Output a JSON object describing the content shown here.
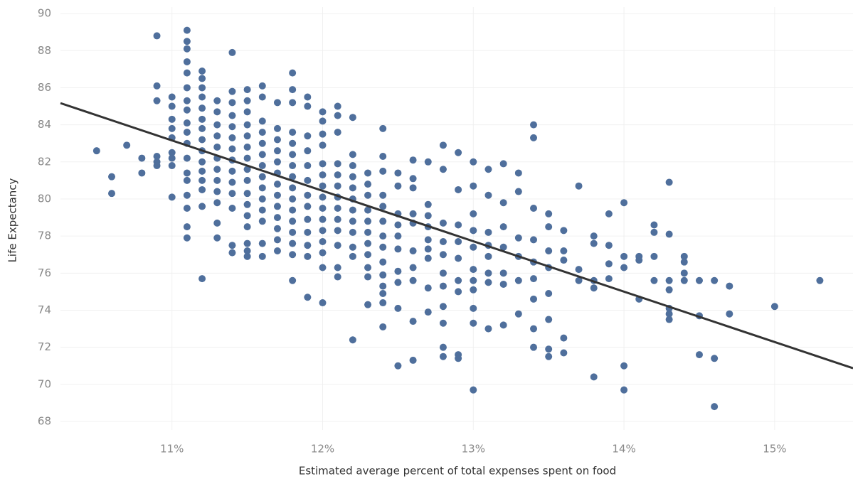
{
  "chart_data": {
    "type": "scatter",
    "x_label": "Estimated average percent of total expenses spent on food",
    "y_label": "Life Expectancy",
    "color": "#4f6f9c",
    "trend_color": "#333333",
    "grid": true,
    "xlim": [
      10.26,
      15.52
    ],
    "ylim": [
      67.54,
      90.35
    ],
    "xticks": [
      {
        "value": 11,
        "label": "11%"
      },
      {
        "value": 12,
        "label": "12%"
      },
      {
        "value": 13,
        "label": "13%"
      },
      {
        "value": 14,
        "label": "14%"
      },
      {
        "value": 15,
        "label": "15%"
      }
    ],
    "yticks": [
      68,
      70,
      72,
      74,
      76,
      78,
      80,
      82,
      84,
      86,
      88,
      90
    ],
    "trend_line": {
      "x": [
        10.26,
        15.52
      ],
      "y": [
        85.17,
        70.87
      ]
    },
    "points": [
      [
        10.5,
        82.6
      ],
      [
        10.6,
        81.2
      ],
      [
        10.6,
        80.3
      ],
      [
        10.7,
        82.9
      ],
      [
        10.8,
        82.2
      ],
      [
        10.8,
        81.4
      ],
      [
        10.9,
        88.8
      ],
      [
        10.9,
        86.1
      ],
      [
        10.9,
        85.3
      ],
      [
        10.9,
        82.3
      ],
      [
        10.9,
        82.0
      ],
      [
        10.9,
        81.8
      ],
      [
        11.0,
        85.5
      ],
      [
        11.0,
        85.0
      ],
      [
        11.0,
        84.3
      ],
      [
        11.0,
        83.8
      ],
      [
        11.0,
        83.3
      ],
      [
        11.0,
        82.5
      ],
      [
        11.0,
        82.2
      ],
      [
        11.0,
        81.8
      ],
      [
        11.0,
        80.1
      ],
      [
        11.1,
        89.1
      ],
      [
        11.1,
        88.5
      ],
      [
        11.1,
        88.1
      ],
      [
        11.1,
        87.4
      ],
      [
        11.1,
        86.8
      ],
      [
        11.1,
        86.0
      ],
      [
        11.1,
        85.3
      ],
      [
        11.1,
        84.8
      ],
      [
        11.1,
        84.1
      ],
      [
        11.1,
        83.6
      ],
      [
        11.1,
        83.0
      ],
      [
        11.1,
        82.2
      ],
      [
        11.1,
        81.4
      ],
      [
        11.1,
        81.0
      ],
      [
        11.1,
        80.2
      ],
      [
        11.1,
        79.5
      ],
      [
        11.1,
        78.5
      ],
      [
        11.1,
        77.9
      ],
      [
        11.2,
        86.9
      ],
      [
        11.2,
        86.5
      ],
      [
        11.2,
        86.0
      ],
      [
        11.2,
        85.5
      ],
      [
        11.2,
        84.9
      ],
      [
        11.2,
        84.3
      ],
      [
        11.2,
        83.8
      ],
      [
        11.2,
        83.2
      ],
      [
        11.2,
        82.6
      ],
      [
        11.2,
        82.0
      ],
      [
        11.2,
        81.5
      ],
      [
        11.2,
        81.0
      ],
      [
        11.2,
        80.5
      ],
      [
        11.2,
        79.6
      ],
      [
        11.2,
        75.7
      ],
      [
        11.3,
        85.3
      ],
      [
        11.3,
        84.7
      ],
      [
        11.3,
        84.0
      ],
      [
        11.3,
        83.4
      ],
      [
        11.3,
        82.8
      ],
      [
        11.3,
        82.2
      ],
      [
        11.3,
        81.6
      ],
      [
        11.3,
        81.0
      ],
      [
        11.3,
        80.4
      ],
      [
        11.3,
        79.8
      ],
      [
        11.3,
        78.7
      ],
      [
        11.3,
        77.9
      ],
      [
        11.4,
        87.9
      ],
      [
        11.4,
        85.8
      ],
      [
        11.4,
        85.2
      ],
      [
        11.4,
        84.5
      ],
      [
        11.4,
        83.9
      ],
      [
        11.4,
        83.3
      ],
      [
        11.4,
        82.7
      ],
      [
        11.4,
        82.1
      ],
      [
        11.4,
        81.5
      ],
      [
        11.4,
        80.9
      ],
      [
        11.4,
        80.3
      ],
      [
        11.4,
        79.5
      ],
      [
        11.4,
        77.5
      ],
      [
        11.4,
        77.1
      ],
      [
        11.5,
        85.9
      ],
      [
        11.5,
        85.3
      ],
      [
        11.5,
        84.7
      ],
      [
        11.5,
        84.0
      ],
      [
        11.5,
        83.4
      ],
      [
        11.5,
        82.8
      ],
      [
        11.5,
        82.2
      ],
      [
        11.5,
        81.6
      ],
      [
        11.5,
        81.0
      ],
      [
        11.5,
        80.3
      ],
      [
        11.5,
        79.7
      ],
      [
        11.5,
        79.1
      ],
      [
        11.5,
        78.5
      ],
      [
        11.5,
        77.6
      ],
      [
        11.5,
        77.2
      ],
      [
        11.5,
        76.9
      ],
      [
        11.6,
        86.1
      ],
      [
        11.6,
        85.5
      ],
      [
        11.6,
        84.2
      ],
      [
        11.6,
        83.6
      ],
      [
        11.6,
        83.0
      ],
      [
        11.6,
        82.4
      ],
      [
        11.6,
        81.8
      ],
      [
        11.6,
        81.2
      ],
      [
        11.6,
        80.6
      ],
      [
        11.6,
        80.0
      ],
      [
        11.6,
        79.4
      ],
      [
        11.6,
        78.8
      ],
      [
        11.6,
        77.6
      ],
      [
        11.6,
        76.9
      ],
      [
        11.7,
        85.2
      ],
      [
        11.7,
        83.8
      ],
      [
        11.7,
        83.2
      ],
      [
        11.7,
        82.6
      ],
      [
        11.7,
        82.0
      ],
      [
        11.7,
        81.4
      ],
      [
        11.7,
        80.8
      ],
      [
        11.7,
        80.2
      ],
      [
        11.7,
        79.6
      ],
      [
        11.7,
        79.0
      ],
      [
        11.7,
        78.4
      ],
      [
        11.7,
        77.8
      ],
      [
        11.7,
        77.2
      ],
      [
        11.8,
        86.8
      ],
      [
        11.8,
        85.9
      ],
      [
        11.8,
        85.2
      ],
      [
        11.8,
        83.6
      ],
      [
        11.8,
        83.0
      ],
      [
        11.8,
        82.4
      ],
      [
        11.8,
        81.8
      ],
      [
        11.8,
        81.2
      ],
      [
        11.8,
        80.6
      ],
      [
        11.8,
        80.0
      ],
      [
        11.8,
        79.4
      ],
      [
        11.8,
        78.8
      ],
      [
        11.8,
        78.2
      ],
      [
        11.8,
        77.6
      ],
      [
        11.8,
        77.0
      ],
      [
        11.8,
        75.6
      ],
      [
        11.9,
        85.5
      ],
      [
        11.9,
        85.0
      ],
      [
        11.9,
        83.4
      ],
      [
        11.9,
        82.6
      ],
      [
        11.9,
        81.8
      ],
      [
        11.9,
        81.0
      ],
      [
        11.9,
        80.2
      ],
      [
        11.9,
        79.6
      ],
      [
        11.9,
        78.9
      ],
      [
        11.9,
        78.2
      ],
      [
        11.9,
        77.5
      ],
      [
        11.9,
        76.9
      ],
      [
        11.9,
        74.7
      ],
      [
        12.0,
        84.7
      ],
      [
        12.0,
        84.2
      ],
      [
        12.0,
        83.5
      ],
      [
        12.0,
        82.9
      ],
      [
        12.0,
        81.9
      ],
      [
        12.0,
        81.3
      ],
      [
        12.0,
        80.7
      ],
      [
        12.0,
        80.1
      ],
      [
        12.0,
        79.5
      ],
      [
        12.0,
        78.9
      ],
      [
        12.0,
        78.3
      ],
      [
        12.0,
        77.7
      ],
      [
        12.0,
        77.1
      ],
      [
        12.0,
        76.3
      ],
      [
        12.0,
        74.4
      ],
      [
        12.1,
        85.0
      ],
      [
        12.1,
        84.5
      ],
      [
        12.1,
        83.6
      ],
      [
        12.1,
        81.9
      ],
      [
        12.1,
        81.3
      ],
      [
        12.1,
        80.7
      ],
      [
        12.1,
        80.1
      ],
      [
        12.1,
        79.5
      ],
      [
        12.1,
        78.9
      ],
      [
        12.1,
        78.3
      ],
      [
        12.1,
        77.5
      ],
      [
        12.1,
        76.3
      ],
      [
        12.1,
        75.8
      ],
      [
        12.2,
        84.4
      ],
      [
        12.2,
        82.4
      ],
      [
        12.2,
        81.8
      ],
      [
        12.2,
        81.2
      ],
      [
        12.2,
        80.6
      ],
      [
        12.2,
        80.0
      ],
      [
        12.2,
        79.4
      ],
      [
        12.2,
        78.8
      ],
      [
        12.2,
        78.2
      ],
      [
        12.2,
        77.4
      ],
      [
        12.2,
        76.9
      ],
      [
        12.2,
        72.4
      ],
      [
        12.3,
        81.4
      ],
      [
        12.3,
        80.8
      ],
      [
        12.3,
        80.2
      ],
      [
        12.3,
        79.4
      ],
      [
        12.3,
        78.8
      ],
      [
        12.3,
        78.2
      ],
      [
        12.3,
        77.6
      ],
      [
        12.3,
        77.0
      ],
      [
        12.3,
        76.3
      ],
      [
        12.3,
        75.8
      ],
      [
        12.3,
        74.3
      ],
      [
        12.4,
        83.8
      ],
      [
        12.4,
        82.3
      ],
      [
        12.4,
        81.5
      ],
      [
        12.4,
        80.2
      ],
      [
        12.4,
        79.6
      ],
      [
        12.4,
        78.8
      ],
      [
        12.4,
        78.0
      ],
      [
        12.4,
        77.4
      ],
      [
        12.4,
        76.6
      ],
      [
        12.4,
        75.9
      ],
      [
        12.4,
        75.3
      ],
      [
        12.4,
        74.9
      ],
      [
        12.4,
        74.4
      ],
      [
        12.4,
        73.1
      ],
      [
        12.5,
        81.4
      ],
      [
        12.5,
        80.7
      ],
      [
        12.5,
        79.2
      ],
      [
        12.5,
        78.6
      ],
      [
        12.5,
        78.0
      ],
      [
        12.5,
        77.3
      ],
      [
        12.5,
        76.1
      ],
      [
        12.5,
        75.5
      ],
      [
        12.5,
        74.1
      ],
      [
        12.5,
        71.0
      ],
      [
        12.6,
        82.1
      ],
      [
        12.6,
        81.1
      ],
      [
        12.6,
        80.6
      ],
      [
        12.6,
        79.2
      ],
      [
        12.6,
        78.7
      ],
      [
        12.6,
        77.2
      ],
      [
        12.6,
        76.3
      ],
      [
        12.6,
        75.6
      ],
      [
        12.6,
        73.4
      ],
      [
        12.6,
        71.3
      ],
      [
        12.7,
        82.0
      ],
      [
        12.7,
        79.7
      ],
      [
        12.7,
        79.1
      ],
      [
        12.7,
        78.5
      ],
      [
        12.7,
        77.8
      ],
      [
        12.7,
        77.3
      ],
      [
        12.7,
        76.8
      ],
      [
        12.7,
        75.2
      ],
      [
        12.7,
        73.9
      ],
      [
        12.8,
        82.9
      ],
      [
        12.8,
        81.6
      ],
      [
        12.8,
        78.7
      ],
      [
        12.8,
        77.7
      ],
      [
        12.8,
        77.0
      ],
      [
        12.8,
        76.0
      ],
      [
        12.8,
        75.3
      ],
      [
        12.8,
        74.2
      ],
      [
        12.8,
        73.3
      ],
      [
        12.8,
        72.0
      ],
      [
        12.8,
        71.5
      ],
      [
        12.9,
        82.5
      ],
      [
        12.9,
        80.5
      ],
      [
        12.9,
        78.6
      ],
      [
        12.9,
        77.7
      ],
      [
        12.9,
        76.8
      ],
      [
        12.9,
        75.6
      ],
      [
        12.9,
        75.0
      ],
      [
        12.9,
        71.6
      ],
      [
        12.9,
        71.4
      ],
      [
        13.0,
        82.0
      ],
      [
        13.0,
        80.7
      ],
      [
        13.0,
        79.2
      ],
      [
        13.0,
        78.3
      ],
      [
        13.0,
        77.4
      ],
      [
        13.0,
        76.2
      ],
      [
        13.0,
        75.6
      ],
      [
        13.0,
        75.1
      ],
      [
        13.0,
        74.1
      ],
      [
        13.0,
        73.3
      ],
      [
        13.0,
        69.7
      ],
      [
        13.1,
        81.6
      ],
      [
        13.1,
        80.2
      ],
      [
        13.1,
        78.2
      ],
      [
        13.1,
        77.5
      ],
      [
        13.1,
        76.9
      ],
      [
        13.1,
        76.0
      ],
      [
        13.1,
        75.5
      ],
      [
        13.1,
        73.0
      ],
      [
        13.2,
        81.9
      ],
      [
        13.2,
        79.8
      ],
      [
        13.2,
        78.5
      ],
      [
        13.2,
        77.4
      ],
      [
        13.2,
        76.0
      ],
      [
        13.2,
        75.4
      ],
      [
        13.2,
        73.2
      ],
      [
        13.3,
        81.4
      ],
      [
        13.3,
        80.4
      ],
      [
        13.3,
        77.9
      ],
      [
        13.3,
        76.9
      ],
      [
        13.3,
        75.6
      ],
      [
        13.3,
        73.8
      ],
      [
        13.4,
        84.0
      ],
      [
        13.4,
        83.3
      ],
      [
        13.4,
        79.5
      ],
      [
        13.4,
        77.8
      ],
      [
        13.4,
        76.6
      ],
      [
        13.4,
        75.7
      ],
      [
        13.4,
        74.6
      ],
      [
        13.4,
        73.0
      ],
      [
        13.4,
        72.0
      ],
      [
        13.5,
        79.2
      ],
      [
        13.5,
        78.5
      ],
      [
        13.5,
        77.2
      ],
      [
        13.5,
        76.3
      ],
      [
        13.5,
        74.9
      ],
      [
        13.5,
        73.5
      ],
      [
        13.5,
        71.9
      ],
      [
        13.5,
        71.5
      ],
      [
        13.6,
        78.3
      ],
      [
        13.6,
        77.2
      ],
      [
        13.6,
        76.7
      ],
      [
        13.6,
        72.5
      ],
      [
        13.6,
        71.7
      ],
      [
        13.7,
        80.7
      ],
      [
        13.7,
        76.2
      ],
      [
        13.7,
        75.6
      ],
      [
        13.8,
        78.0
      ],
      [
        13.8,
        77.6
      ],
      [
        13.8,
        75.6
      ],
      [
        13.8,
        75.2
      ],
      [
        13.8,
        70.4
      ],
      [
        13.9,
        79.2
      ],
      [
        13.9,
        77.5
      ],
      [
        13.9,
        76.5
      ],
      [
        13.9,
        75.7
      ],
      [
        14.0,
        79.8
      ],
      [
        14.0,
        76.9
      ],
      [
        14.0,
        76.3
      ],
      [
        14.0,
        71.0
      ],
      [
        14.0,
        69.7
      ],
      [
        14.1,
        76.9
      ],
      [
        14.1,
        76.7
      ],
      [
        14.1,
        74.6
      ],
      [
        14.2,
        78.6
      ],
      [
        14.2,
        78.2
      ],
      [
        14.2,
        76.9
      ],
      [
        14.2,
        75.6
      ],
      [
        14.3,
        80.9
      ],
      [
        14.3,
        78.1
      ],
      [
        14.3,
        75.6
      ],
      [
        14.3,
        75.1
      ],
      [
        14.3,
        74.1
      ],
      [
        14.3,
        73.8
      ],
      [
        14.3,
        73.5
      ],
      [
        14.4,
        76.9
      ],
      [
        14.4,
        76.6
      ],
      [
        14.4,
        76.0
      ],
      [
        14.4,
        75.6
      ],
      [
        14.5,
        75.6
      ],
      [
        14.5,
        73.7
      ],
      [
        14.5,
        71.6
      ],
      [
        14.6,
        75.6
      ],
      [
        14.6,
        71.4
      ],
      [
        14.6,
        68.8
      ],
      [
        14.7,
        75.3
      ],
      [
        14.7,
        73.8
      ],
      [
        15.0,
        74.2
      ],
      [
        15.3,
        75.6
      ]
    ]
  }
}
